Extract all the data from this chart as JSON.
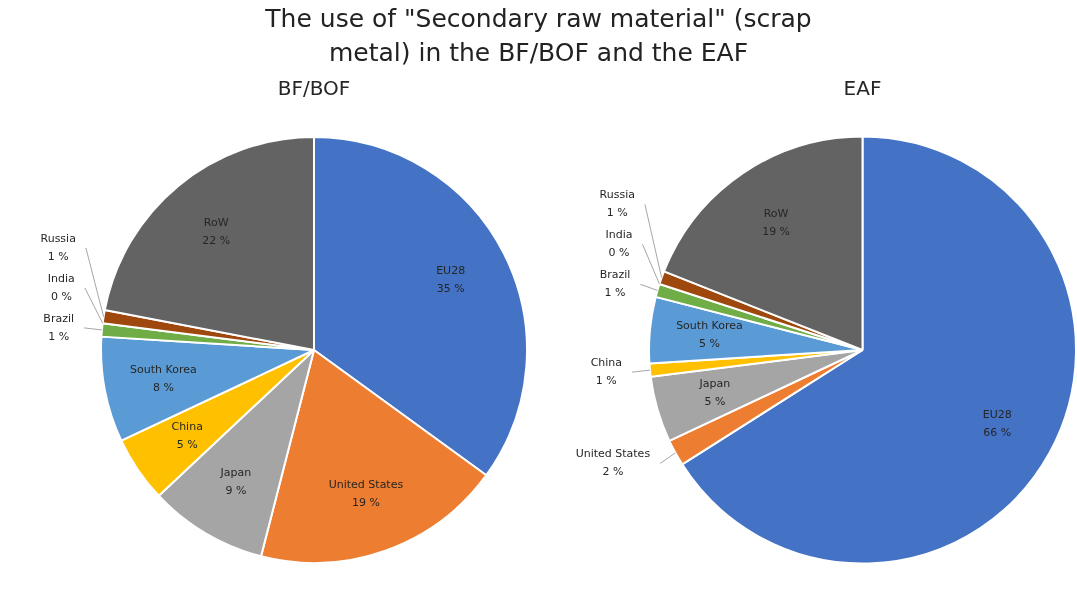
{
  "chart_data": [
    {
      "type": "pie",
      "title": "The use of \"Secondary raw material\" (scrap metal) in the BF/BOF and the EAF",
      "subtitle": "BF/BOF",
      "categories": [
        "EU28",
        "United States",
        "Japan",
        "China",
        "South Korea",
        "Brazil",
        "India",
        "Russia",
        "RoW"
      ],
      "values": [
        35,
        19,
        9,
        5,
        8,
        1,
        0,
        1,
        22
      ],
      "value_labels": [
        "35 %",
        "19 %",
        "9 %",
        "5 %",
        "8 %",
        "1 %",
        "0 %",
        "1 %",
        "22 %"
      ],
      "colors": [
        "#4472c4",
        "#ed7d31",
        "#a5a5a5",
        "#ffc000",
        "#5b9bd5",
        "#70ad47",
        "#264478",
        "#9e480e",
        "#636363"
      ]
    },
    {
      "type": "pie",
      "subtitle": "EAF",
      "categories": [
        "EU28",
        "United States",
        "Japan",
        "China",
        "South Korea",
        "Brazil",
        "India",
        "Russia",
        "RoW"
      ],
      "values": [
        66,
        2,
        5,
        1,
        5,
        1,
        0,
        1,
        19
      ],
      "value_labels": [
        "66 %",
        "2 %",
        "5 %",
        "1 %",
        "5 %",
        "1 %",
        "0 %",
        "1 %",
        "19 %"
      ],
      "colors": [
        "#4472c4",
        "#ed7d31",
        "#a5a5a5",
        "#ffc000",
        "#5b9bd5",
        "#70ad47",
        "#264478",
        "#9e480e",
        "#636363"
      ]
    }
  ]
}
